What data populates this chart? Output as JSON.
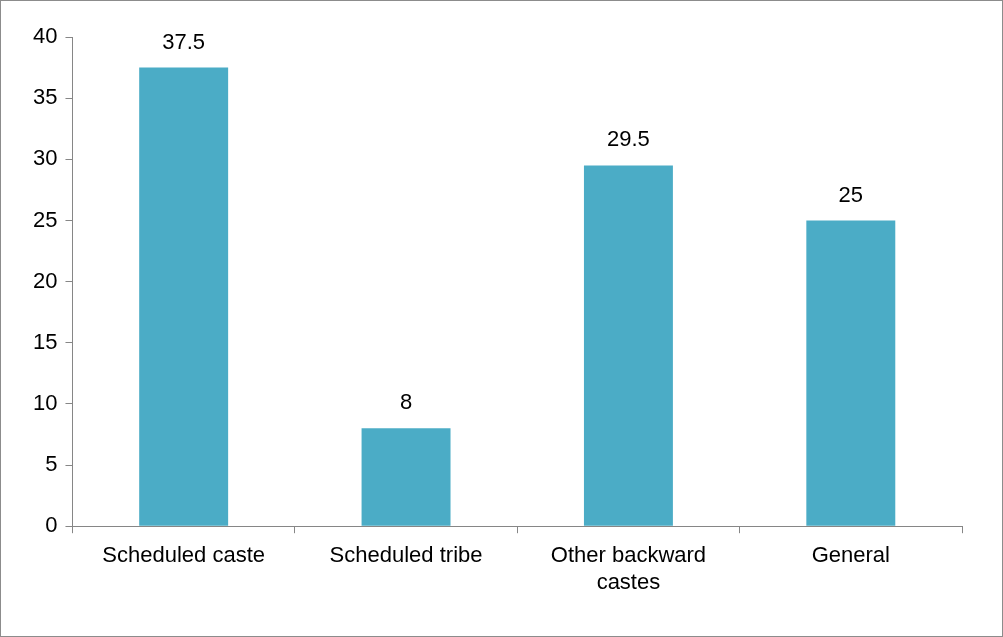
{
  "chart_data": {
    "type": "bar",
    "categories": [
      "Scheduled caste",
      "Scheduled tribe",
      "Other backward castes",
      "General"
    ],
    "values": [
      37.5,
      8,
      29.5,
      25
    ],
    "color": "#4bacc6",
    "ylim": [
      0,
      40
    ],
    "yticks": [
      0,
      5,
      10,
      15,
      20,
      25,
      30,
      35,
      40
    ],
    "data_labels": true
  }
}
